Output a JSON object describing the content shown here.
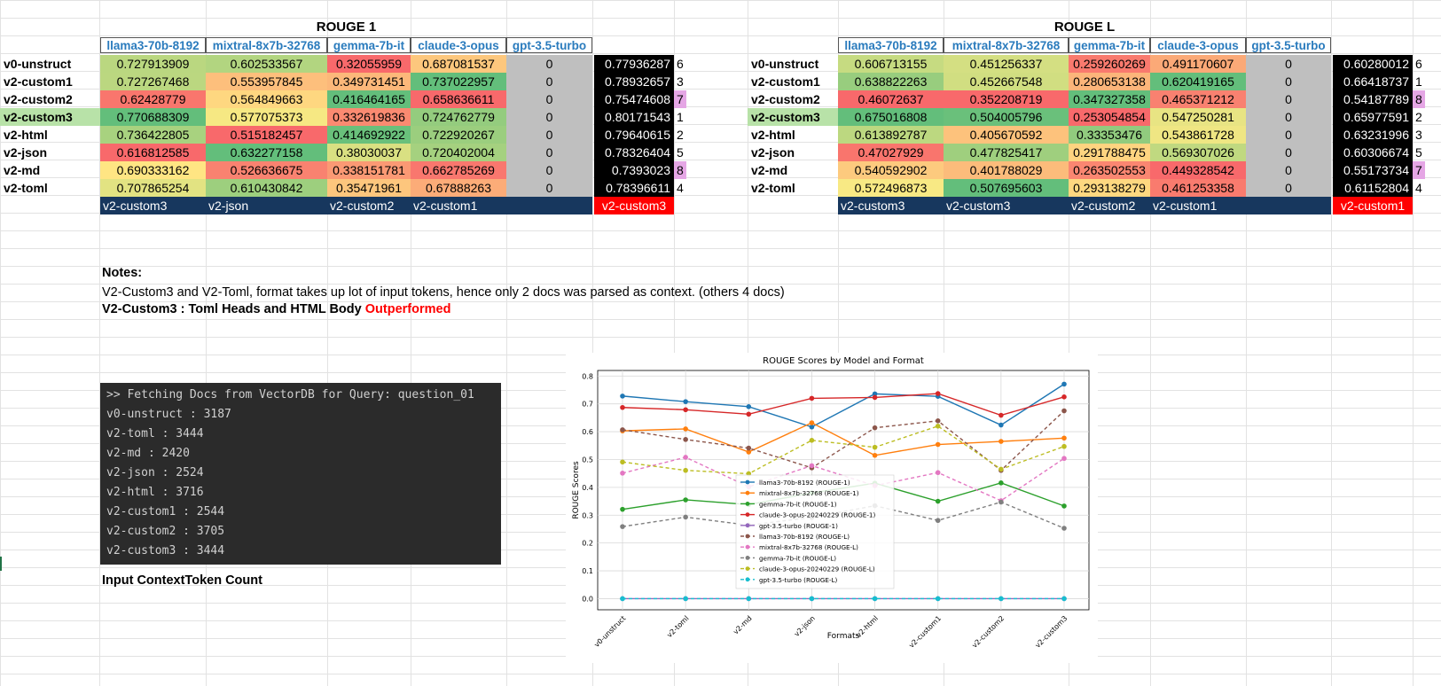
{
  "rouge1": {
    "title": "ROUGE 1",
    "headers": [
      "llama3-70b-8192",
      "mixtral-8x7b-32768",
      "gemma-7b-it",
      "claude-3-opus",
      "gpt-3.5-turbo"
    ],
    "rows": [
      {
        "label": "v0-unstruct",
        "values": [
          "0.727913909",
          "0.602533567",
          "0.32055959",
          "0.687081537",
          "0"
        ],
        "avg": "0.77936287",
        "rank": "6"
      },
      {
        "label": "v2-custom1",
        "values": [
          "0.727267468",
          "0.553957845",
          "0.349731451",
          "0.737022957",
          "0"
        ],
        "avg": "0.78932657",
        "rank": "3"
      },
      {
        "label": "v2-custom2",
        "values": [
          "0.62428779",
          "0.564849663",
          "0.416464165",
          "0.658636611",
          "0"
        ],
        "avg": "0.75474608",
        "rank": "7"
      },
      {
        "label": "v2-custom3",
        "values": [
          "0.770688309",
          "0.577075373",
          "0.332619836",
          "0.724762779",
          "0"
        ],
        "avg": "0.80171543",
        "rank": "1"
      },
      {
        "label": "v2-html",
        "values": [
          "0.736422805",
          "0.515182457",
          "0.414692922",
          "0.722920267",
          "0"
        ],
        "avg": "0.79640615",
        "rank": "2"
      },
      {
        "label": "v2-json",
        "values": [
          "0.616812585",
          "0.632277158",
          "0.38030037",
          "0.720402004",
          "0"
        ],
        "avg": "0.78326404",
        "rank": "5"
      },
      {
        "label": "v2-md",
        "values": [
          "0.690333162",
          "0.526636675",
          "0.338151781",
          "0.662785269",
          "0"
        ],
        "avg": "0.7393023",
        "rank": "8"
      },
      {
        "label": "v2-toml",
        "values": [
          "0.707865254",
          "0.610430842",
          "0.35471961",
          "0.67888263",
          "0"
        ],
        "avg": "0.78396611",
        "rank": "4"
      }
    ],
    "best": [
      "v2-custom3",
      "v2-json",
      "v2-custom2",
      "v2-custom1"
    ],
    "best_overall": "v2-custom3"
  },
  "rougeL": {
    "title": "ROUGE L",
    "headers": [
      "llama3-70b-8192",
      "mixtral-8x7b-32768",
      "gemma-7b-it",
      "claude-3-opus",
      "gpt-3.5-turbo"
    ],
    "rows": [
      {
        "label": "v0-unstruct",
        "values": [
          "0.606713155",
          "0.451256337",
          "0.259260269",
          "0.491170607",
          "0"
        ],
        "avg": "0.60280012",
        "rank": "6"
      },
      {
        "label": "v2-custom1",
        "values": [
          "0.638822263",
          "0.452667548",
          "0.280653138",
          "0.620419165",
          "0"
        ],
        "avg": "0.66418737",
        "rank": "1"
      },
      {
        "label": "v2-custom2",
        "values": [
          "0.46072637",
          "0.352208719",
          "0.347327358",
          "0.465371212",
          "0"
        ],
        "avg": "0.54187789",
        "rank": "8"
      },
      {
        "label": "v2-custom3",
        "values": [
          "0.675016808",
          "0.504005796",
          "0.253054854",
          "0.547250281",
          "0"
        ],
        "avg": "0.65977591",
        "rank": "2"
      },
      {
        "label": "v2-html",
        "values": [
          "0.613892787",
          "0.405670592",
          "0.33353476",
          "0.543861728",
          "0"
        ],
        "avg": "0.63231996",
        "rank": "3"
      },
      {
        "label": "v2-json",
        "values": [
          "0.47027929",
          "0.477825417",
          "0.291788475",
          "0.569307026",
          "0"
        ],
        "avg": "0.60306674",
        "rank": "5"
      },
      {
        "label": "v2-md",
        "values": [
          "0.540592902",
          "0.401788029",
          "0.263502553",
          "0.449328542",
          "0"
        ],
        "avg": "0.55173734",
        "rank": "7"
      },
      {
        "label": "v2-toml",
        "values": [
          "0.572496873",
          "0.507695603",
          "0.293138279",
          "0.461253358",
          "0"
        ],
        "avg": "0.61152804",
        "rank": "4"
      }
    ],
    "best": [
      "v2-custom3",
      "v2-custom3",
      "v2-custom2",
      "v2-custom1"
    ],
    "best_overall": "v2-custom1"
  },
  "notes": {
    "heading": "Notes:",
    "line1": "V2-Custom3 and V2-Toml, format takes up lot of input tokens, hence only 2 docs was parsed as context. (others 4 docs)",
    "line2_bold": "V2-Custom3 : Toml Heads and HTML Body",
    "line2_red": "Outperformed"
  },
  "terminal": {
    "lines": [
      ">> Fetching Docs from VectorDB for Query: question_01",
      "v0-unstruct : 3187",
      "v2-toml : 3444",
      "v2-md : 2420",
      "v2-json : 2524",
      "v2-html : 3716",
      "v2-custom1 : 2544",
      "v2-custom2 : 3705",
      "v2-custom3 : 3444"
    ],
    "caption": "Input ContextToken Count"
  },
  "colors": {
    "header_text": "#2a7bbd",
    "best_bar": "#17375e",
    "best_overall_bg": "#ff0000",
    "rank_highlight": "#e5a6e5",
    "highlight_row": "#b8e2a8",
    "zero_fill": "#bfbfbf"
  },
  "chart_data": {
    "type": "line",
    "title": "ROUGE Scores by Model and Format",
    "xlabel": "Formats",
    "ylabel": "ROUGE Scores",
    "categories": [
      "v0-unstruct",
      "v2-toml",
      "v2-md",
      "v2-json",
      "v2-html",
      "v2-custom1",
      "v2-custom2",
      "v2-custom3"
    ],
    "ylim": [
      -0.04,
      0.82
    ],
    "yticks": [
      "0.0",
      "0.1",
      "0.2",
      "0.3",
      "0.4",
      "0.5",
      "0.6",
      "0.7",
      "0.8"
    ],
    "grid": true,
    "legend_position": "lower-center",
    "series": [
      {
        "name": "llama3-70b-8192 (ROUGE-1)",
        "color": "#1f77b4",
        "dash": false,
        "values": [
          0.728,
          0.708,
          0.69,
          0.617,
          0.736,
          0.727,
          0.624,
          0.771
        ]
      },
      {
        "name": "mixtral-8x7b-32768 (ROUGE-1)",
        "color": "#ff7f0e",
        "dash": false,
        "values": [
          0.603,
          0.61,
          0.527,
          0.632,
          0.515,
          0.554,
          0.565,
          0.577
        ]
      },
      {
        "name": "gemma-7b-it (ROUGE-1)",
        "color": "#2ca02c",
        "dash": false,
        "values": [
          0.321,
          0.355,
          0.338,
          0.38,
          0.415,
          0.35,
          0.416,
          0.333
        ]
      },
      {
        "name": "claude-3-opus-20240229 (ROUGE-1)",
        "color": "#d62728",
        "dash": false,
        "values": [
          0.687,
          0.679,
          0.663,
          0.72,
          0.723,
          0.737,
          0.659,
          0.725
        ]
      },
      {
        "name": "gpt-3.5-turbo (ROUGE-1)",
        "color": "#9467bd",
        "dash": false,
        "values": [
          0,
          0,
          0,
          0,
          0,
          0,
          0,
          0
        ]
      },
      {
        "name": "llama3-70b-8192 (ROUGE-L)",
        "color": "#8c564b",
        "dash": true,
        "values": [
          0.607,
          0.572,
          0.541,
          0.47,
          0.614,
          0.639,
          0.461,
          0.675
        ]
      },
      {
        "name": "mixtral-8x7b-32768 (ROUGE-L)",
        "color": "#e377c2",
        "dash": true,
        "values": [
          0.451,
          0.508,
          0.402,
          0.478,
          0.406,
          0.453,
          0.352,
          0.504
        ]
      },
      {
        "name": "gemma-7b-it (ROUGE-L)",
        "color": "#7f7f7f",
        "dash": true,
        "values": [
          0.259,
          0.293,
          0.264,
          0.292,
          0.334,
          0.281,
          0.347,
          0.253
        ]
      },
      {
        "name": "claude-3-opus-20240229 (ROUGE-L)",
        "color": "#bcbd22",
        "dash": true,
        "values": [
          0.491,
          0.461,
          0.449,
          0.569,
          0.544,
          0.62,
          0.465,
          0.547
        ]
      },
      {
        "name": "gpt-3.5-turbo (ROUGE-L)",
        "color": "#17becf",
        "dash": true,
        "values": [
          0,
          0,
          0,
          0,
          0,
          0,
          0,
          0
        ]
      }
    ]
  }
}
